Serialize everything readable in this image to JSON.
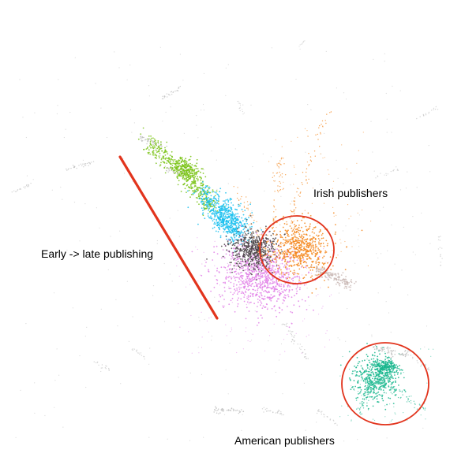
{
  "annotations": {
    "early_late": "Early -> late publishing",
    "irish": "Irish publishers",
    "american": "American publishers"
  },
  "colors": {
    "background": "#ffffff",
    "gray": "#bdbdbd",
    "green": "#7cc41a",
    "cyan": "#19c0ee",
    "dark": "#4a4346",
    "magenta": "#e07be6",
    "orange": "#f4861b",
    "pinkgray": "#c8b7b3",
    "teal": "#1ab78e",
    "annotation_red": "#e2341d"
  }
}
